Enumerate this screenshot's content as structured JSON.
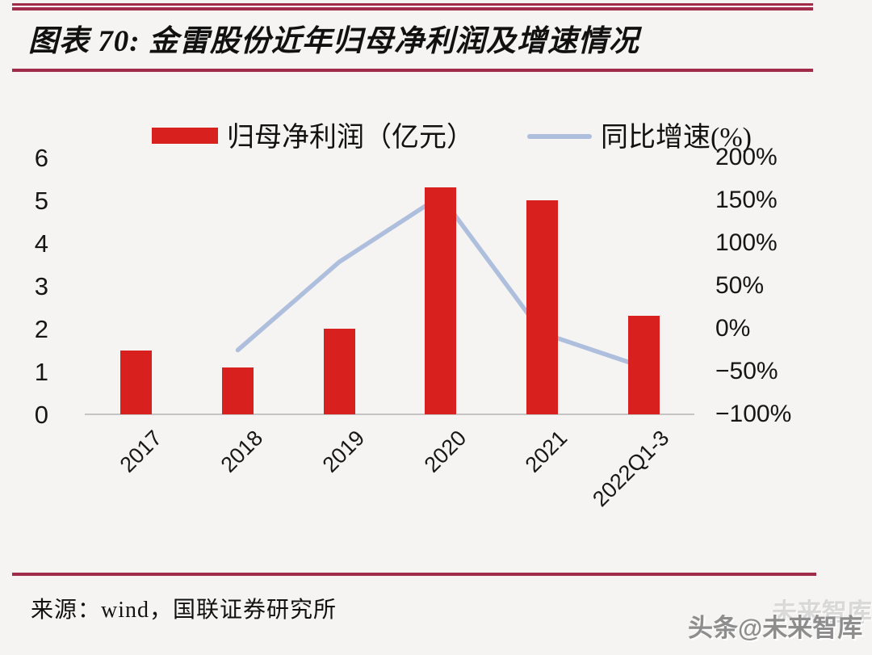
{
  "header": {
    "title": "图表 70: 金雷股份近年归母净利润及增速情况"
  },
  "legend": {
    "bar_label": "归母净利润（亿元）",
    "line_label": "同比增速(%)"
  },
  "chart_data": {
    "type": "bar",
    "subtype": "bar+line combo, dual axis",
    "title": "金雷股份近年归母净利润及增速情况",
    "categories": [
      "2017",
      "2018",
      "2019",
      "2020",
      "2021",
      "2022Q1-3"
    ],
    "series": [
      {
        "name": "归母净利润（亿元）",
        "type": "bar",
        "axis": "left",
        "color": "#d8201f",
        "values": [
          1.5,
          1.1,
          2.0,
          5.3,
          5.0,
          2.3
        ]
      },
      {
        "name": "同比增速(%)",
        "type": "line",
        "axis": "right",
        "color": "#aebedd",
        "values": [
          null,
          -25,
          78,
          155,
          -5,
          -45
        ]
      }
    ],
    "left_axis": {
      "ticks": [
        "6",
        "5",
        "4",
        "3",
        "2",
        "1",
        "0"
      ],
      "range": [
        0,
        6
      ]
    },
    "right_axis": {
      "ticks": [
        "200%",
        "150%",
        "100%",
        "50%",
        "0%",
        "−50%",
        "−100%"
      ],
      "range": [
        -100,
        200
      ],
      "unit": "%"
    },
    "grid": false,
    "legend_position": "top"
  },
  "footer": {
    "source": "来源：wind，国联证券研究所"
  },
  "watermark": {
    "text": "头条@未来智库",
    "ghost": "未来智库"
  },
  "colors": {
    "bar": "#d8201f",
    "line": "#aebedd",
    "rule": "#a02c4a",
    "baseline": "#c4c4c4",
    "background": "#f5f4f2",
    "text": "#111111",
    "watermark": "#8d8d8d"
  }
}
